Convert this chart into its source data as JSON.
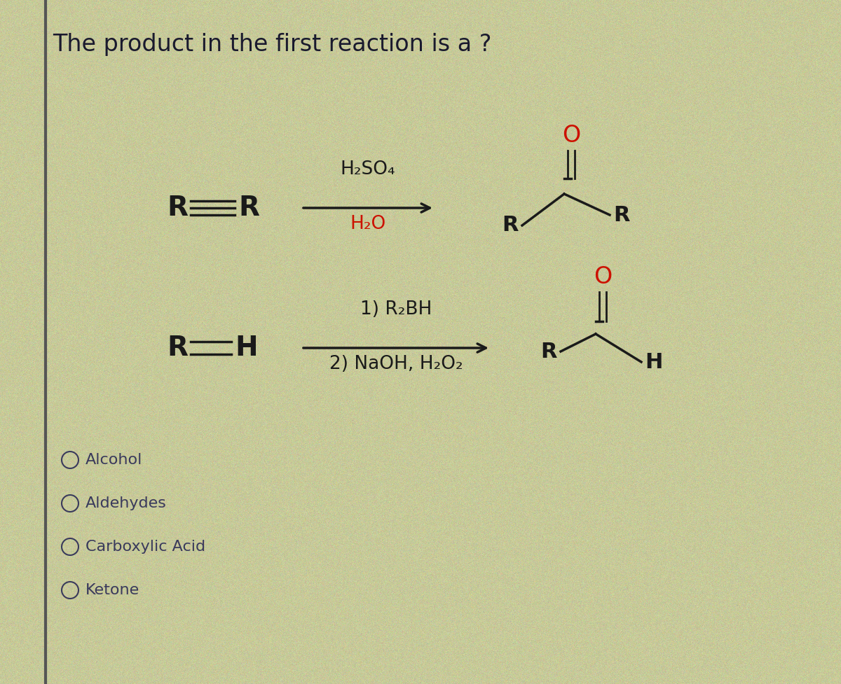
{
  "title": "The product in the first reaction is a ?",
  "title_fontsize": 24,
  "title_color": "#1a1a2e",
  "bg_color": "#c8c89a",
  "text_dark": "#1a1a1a",
  "text_navy": "#3a3a5c",
  "red_color": "#cc1100",
  "arrow_color": "#1a1a1a",
  "reagent1_top": "H₂SO₄",
  "reagent1_top_color": "#1a1a1a",
  "reagent1_bottom": "H₂O",
  "reagent1_bottom_color": "#cc1100",
  "reagent2_top": "1) R₂BH",
  "reagent2_top_color": "#1a1a1a",
  "reagent2_bottom": "2) NaOH, H₂O₂",
  "reagent2_bottom_color": "#1a1a1a",
  "options": [
    "Alcohol",
    "Aldehydes",
    "Carboxylic Acid",
    "Ketone"
  ],
  "option_fontsize": 16,
  "option_color": "#3a3a5c"
}
